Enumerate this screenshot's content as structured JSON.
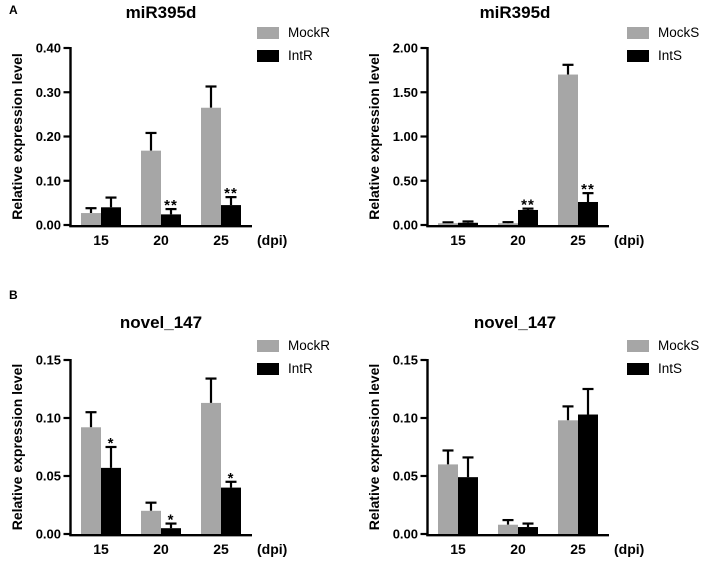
{
  "figure": {
    "background": "#ffffff"
  },
  "panels": [
    {
      "label": "A"
    },
    {
      "label": "B"
    }
  ],
  "colors": {
    "mock_gray": "#a6a6a6",
    "int_black": "#000000",
    "axis": "#000000",
    "text": "#000000"
  },
  "chart_data": [
    {
      "type": "bar",
      "panel": "A",
      "position": "left",
      "title": "miR395d",
      "ylabel": "Relative expression level",
      "xlabel": "(dpi)",
      "categories": [
        "15",
        "20",
        "25"
      ],
      "ylim": [
        0,
        0.4
      ],
      "yticks": [
        0,
        0.1,
        0.2,
        0.3,
        0.4
      ],
      "ytick_labels": [
        "0.00",
        "0.10",
        "0.20",
        "0.30",
        "0.40"
      ],
      "grid": false,
      "legend_position": "top-right",
      "error_bars": "upper SD",
      "series": [
        {
          "name": "MockR",
          "color": "#a6a6a6",
          "values": [
            0.027,
            0.168,
            0.265
          ],
          "errors": [
            0.011,
            0.04,
            0.048
          ],
          "sig": [
            "",
            "",
            ""
          ]
        },
        {
          "name": "IntR",
          "color": "#000000",
          "values": [
            0.04,
            0.024,
            0.045
          ],
          "errors": [
            0.022,
            0.012,
            0.018
          ],
          "sig": [
            "",
            "**",
            "**"
          ]
        }
      ]
    },
    {
      "type": "bar",
      "panel": "A",
      "position": "right",
      "title": "miR395d",
      "ylabel": "Relative expression level",
      "xlabel": "(dpi)",
      "categories": [
        "15",
        "20",
        "25"
      ],
      "ylim": [
        0,
        2.0
      ],
      "yticks": [
        0,
        0.5,
        1.0,
        1.5,
        2.0
      ],
      "ytick_labels": [
        "0.00",
        "0.50",
        "1.00",
        "1.50",
        "2.00"
      ],
      "grid": false,
      "legend_position": "top-right",
      "error_bars": "upper SD",
      "series": [
        {
          "name": "MockS",
          "color": "#a6a6a6",
          "values": [
            0.02,
            0.02,
            1.7
          ],
          "errors": [
            0.01,
            0.012,
            0.11
          ],
          "sig": [
            "",
            "",
            ""
          ]
        },
        {
          "name": "IntS",
          "color": "#000000",
          "values": [
            0.025,
            0.17,
            0.26
          ],
          "errors": [
            0.015,
            0.015,
            0.1
          ],
          "sig": [
            "",
            "**",
            "**"
          ]
        }
      ]
    },
    {
      "type": "bar",
      "panel": "B",
      "position": "left",
      "title": "novel_147",
      "ylabel": "Relative expression level",
      "xlabel": "(dpi)",
      "categories": [
        "15",
        "20",
        "25"
      ],
      "ylim": [
        0,
        0.15
      ],
      "yticks": [
        0,
        0.05,
        0.1,
        0.15
      ],
      "ytick_labels": [
        "0.00",
        "0.05",
        "0.10",
        "0.15"
      ],
      "grid": false,
      "legend_position": "top-right",
      "error_bars": "upper SD",
      "series": [
        {
          "name": "MockR",
          "color": "#a6a6a6",
          "values": [
            0.092,
            0.02,
            0.113
          ],
          "errors": [
            0.013,
            0.007,
            0.021
          ],
          "sig": [
            "",
            "",
            ""
          ]
        },
        {
          "name": "IntR",
          "color": "#000000",
          "values": [
            0.057,
            0.005,
            0.04
          ],
          "errors": [
            0.018,
            0.004,
            0.005
          ],
          "sig": [
            "*",
            "*",
            "*"
          ]
        }
      ]
    },
    {
      "type": "bar",
      "panel": "B",
      "position": "right",
      "title": "novel_147",
      "ylabel": "Relative expression level",
      "xlabel": "(dpi)",
      "categories": [
        "15",
        "20",
        "25"
      ],
      "ylim": [
        0,
        0.15
      ],
      "yticks": [
        0,
        0.05,
        0.1,
        0.15
      ],
      "ytick_labels": [
        "0.00",
        "0.05",
        "0.10",
        "0.15"
      ],
      "grid": false,
      "legend_position": "top-right",
      "error_bars": "upper SD",
      "series": [
        {
          "name": "MockS",
          "color": "#a6a6a6",
          "values": [
            0.06,
            0.008,
            0.098
          ],
          "errors": [
            0.012,
            0.004,
            0.012
          ],
          "sig": [
            "",
            "",
            ""
          ]
        },
        {
          "name": "IntS",
          "color": "#000000",
          "values": [
            0.049,
            0.006,
            0.103
          ],
          "errors": [
            0.017,
            0.003,
            0.022
          ],
          "sig": [
            "",
            "",
            ""
          ]
        }
      ]
    }
  ]
}
